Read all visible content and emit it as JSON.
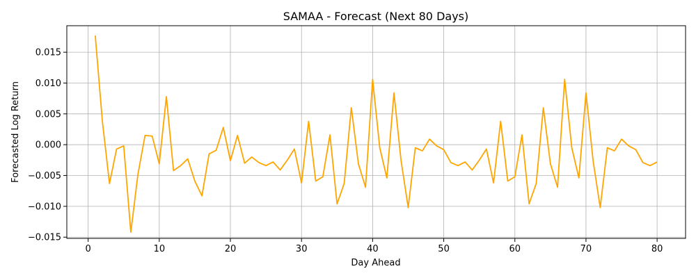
{
  "chart_data": {
    "type": "line",
    "title": "SAMAA - Forecast (Next 80 Days)",
    "xlabel": "Day Ahead",
    "ylabel": "Forecasted Log Return",
    "xlim": [
      -3,
      84
    ],
    "ylim": [
      -0.0152,
      0.0193
    ],
    "xticks": [
      0,
      10,
      20,
      30,
      40,
      50,
      60,
      70,
      80
    ],
    "xtick_labels": [
      "0",
      "10",
      "20",
      "30",
      "40",
      "50",
      "60",
      "70",
      "80"
    ],
    "yticks": [
      -0.015,
      -0.01,
      -0.005,
      0.0,
      0.005,
      0.01,
      0.015
    ],
    "ytick_labels": [
      "−0.015",
      "−0.010",
      "−0.005",
      "0.000",
      "0.005",
      "0.010",
      "0.015"
    ],
    "grid": true,
    "legend": "none",
    "series": [
      {
        "color": "#FFA500",
        "x": [
          1,
          2,
          3,
          4,
          5,
          6,
          7,
          8,
          9,
          10,
          11,
          12,
          13,
          14,
          15,
          16,
          17,
          18,
          19,
          20,
          21,
          22,
          23,
          24,
          25,
          26,
          27,
          28,
          29,
          30,
          31,
          32,
          33,
          34,
          35,
          36,
          37,
          38,
          39,
          40,
          41,
          42,
          43,
          44,
          45,
          46,
          47,
          48,
          49,
          50,
          51,
          52,
          53,
          54,
          55,
          56,
          57,
          58,
          59,
          60,
          61,
          62,
          63,
          64,
          65,
          66,
          67,
          68,
          69,
          70,
          71,
          72,
          73,
          74,
          75,
          76,
          77,
          78,
          79,
          80
        ],
        "y": [
          0.0177,
          0.0038,
          -0.0063,
          -0.0007,
          -0.0002,
          -0.0142,
          -0.0048,
          0.0015,
          0.0014,
          -0.0031,
          0.0078,
          -0.0042,
          -0.0034,
          -0.0023,
          -0.0059,
          -0.0083,
          -0.0015,
          -0.0009,
          0.0028,
          -0.0026,
          0.0015,
          -0.003,
          -0.002,
          -0.0029,
          -0.0034,
          -0.0028,
          -0.0041,
          -0.0025,
          -0.0007,
          -0.0062,
          0.0038,
          -0.0059,
          -0.0052,
          0.0016,
          -0.0096,
          -0.0063,
          0.006,
          -0.0031,
          -0.0069,
          0.0106,
          -0.0005,
          -0.0054,
          0.0084,
          -0.0026,
          -0.0102,
          -0.0005,
          -0.001,
          0.0009,
          -0.0002,
          -0.0008,
          -0.0029,
          -0.0034,
          -0.0028,
          -0.0041,
          -0.0025,
          -0.0007,
          -0.0062,
          0.0038,
          -0.0059,
          -0.0052,
          0.0016,
          -0.0096,
          -0.0063,
          0.006,
          -0.0031,
          -0.0069,
          0.0106,
          -0.0005,
          -0.0054,
          0.0084,
          -0.0026,
          -0.0102,
          -0.0005,
          -0.001,
          0.0009,
          -0.0002,
          -0.0008,
          -0.0029,
          -0.0034,
          -0.0028
        ]
      }
    ]
  }
}
